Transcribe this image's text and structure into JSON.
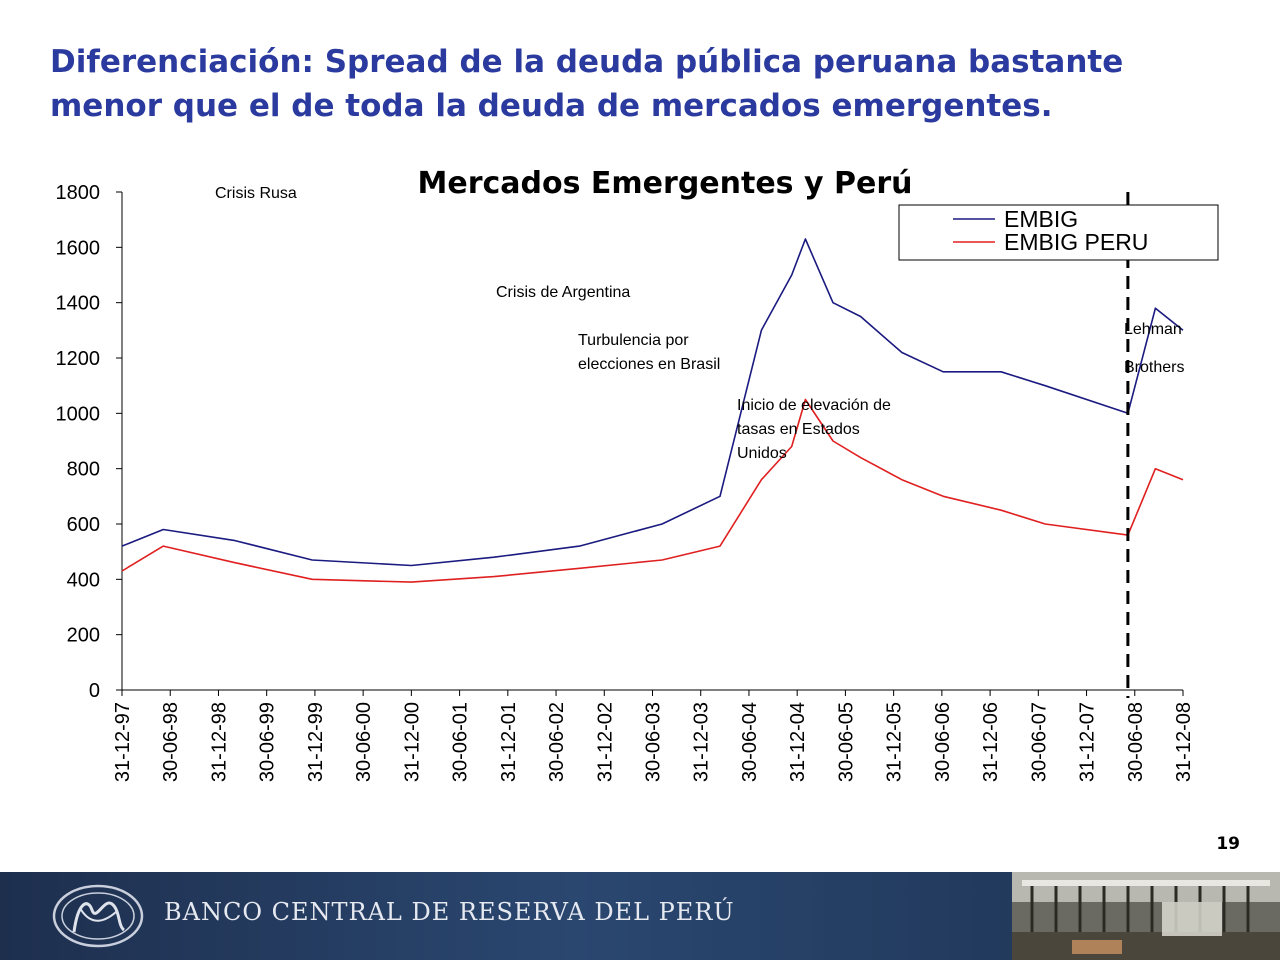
{
  "slide": {
    "title_line1": "Diferenciación: Spread de la deuda pública peruana bastante",
    "title_line2": "menor que el de toda la deuda de mercados emergentes.",
    "page_number": "19"
  },
  "footer": {
    "bank_name": "BANCO CENTRAL DE RESERVA DEL PERÚ",
    "logo_icon": "bcrp-seal-icon",
    "photo": "bank-interior-photo"
  },
  "chart_data": {
    "type": "line",
    "title": "Mercados Emergentes y Perú",
    "xlabel": "",
    "ylabel": "",
    "ylim": [
      0,
      1800
    ],
    "yticks": [
      0,
      200,
      400,
      600,
      800,
      1000,
      1200,
      1400,
      1600,
      1800
    ],
    "xticks": [
      "31-12-97",
      "30-06-98",
      "31-12-98",
      "30-06-99",
      "31-12-99",
      "30-06-00",
      "31-12-00",
      "30-06-01",
      "31-12-01",
      "30-06-02",
      "31-12-02",
      "30-06-03",
      "31-12-03",
      "30-06-04",
      "31-12-04",
      "30-06-05",
      "31-12-05",
      "30-06-06",
      "31-12-06",
      "30-06-07",
      "31-12-07",
      "30-06-08",
      "31-12-08"
    ],
    "x_range": [
      "1997-12-31",
      "1999-01-20"
    ],
    "legend": "top-right",
    "grid": false,
    "series": [
      {
        "name": "EMBIG",
        "color": "#1a1a80",
        "points": [
          [
            "1997-12-31",
            520
          ],
          [
            "1998-01-15",
            580
          ],
          [
            "1998-02-10",
            540
          ],
          [
            "1998-03-10",
            470
          ],
          [
            "1998-04-15",
            450
          ],
          [
            "1998-05-15",
            480
          ],
          [
            "1998-06-15",
            520
          ],
          [
            "1998-07-15",
            600
          ],
          [
            "1998-08-05",
            700
          ],
          [
            "1998-08-20",
            1300
          ],
          [
            "1998-08-31",
            1500
          ],
          [
            "1998-09-05",
            1630
          ],
          [
            "1998-09-15",
            1400
          ],
          [
            "1998-09-25",
            1350
          ],
          [
            "1998-10-10",
            1220
          ],
          [
            "1998-10-25",
            1150
          ],
          [
            "1998-11-15",
            1150
          ],
          [
            "1998-12-01",
            1100
          ],
          [
            "1998-12-31",
            1000
          ],
          [
            "1999-01-10",
            1380
          ],
          [
            "1999-01-20",
            1300
          ]
        ]
      },
      {
        "name": "EMBIG PERU",
        "color": "#e02020",
        "points": [
          [
            "1997-12-31",
            430
          ],
          [
            "1998-01-15",
            520
          ],
          [
            "1998-02-10",
            460
          ],
          [
            "1998-03-10",
            400
          ],
          [
            "1998-04-15",
            390
          ],
          [
            "1998-05-15",
            410
          ],
          [
            "1998-06-15",
            440
          ],
          [
            "1998-07-15",
            470
          ],
          [
            "1998-08-05",
            520
          ],
          [
            "1998-08-20",
            760
          ],
          [
            "1998-08-31",
            880
          ],
          [
            "1998-09-05",
            1050
          ],
          [
            "1998-09-15",
            900
          ],
          [
            "1998-09-25",
            840
          ],
          [
            "1998-10-10",
            760
          ],
          [
            "1998-10-25",
            700
          ],
          [
            "1998-11-15",
            650
          ],
          [
            "1998-12-01",
            600
          ],
          [
            "1998-12-31",
            560
          ],
          [
            "1999-01-10",
            800
          ],
          [
            "1999-01-20",
            760
          ]
        ]
      }
    ],
    "events": [
      {
        "date": "1998-12-31",
        "label": [
          "Crisis Rusa"
        ]
      },
      {
        "date": "2002-02-28",
        "label": [
          "Crisis de Argentina"
        ]
      },
      {
        "date": "2002-12-15",
        "label": [
          "Turbulencia por",
          "elecciones en Brasil"
        ]
      },
      {
        "date": "2004-07-15",
        "label": [
          "Inicio de elevación de",
          "tasas en Estados",
          "Unidos"
        ]
      },
      {
        "date": "2009-01-10",
        "label": [
          "Lehman",
          "Brothers"
        ]
      }
    ]
  }
}
